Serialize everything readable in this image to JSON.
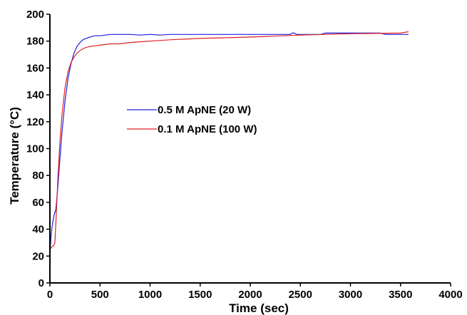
{
  "chart_data": {
    "type": "line",
    "title": "",
    "xlabel": "Time (sec)",
    "ylabel": "Temperature (°C)",
    "xlim": [
      0,
      4000
    ],
    "ylim": [
      0,
      200
    ],
    "xticks": [
      0,
      500,
      1000,
      1500,
      2000,
      2500,
      3000,
      3500,
      4000
    ],
    "yticks": [
      0,
      20,
      40,
      60,
      80,
      100,
      120,
      140,
      160,
      180,
      200
    ],
    "grid": false,
    "legend_position": "center-left",
    "series": [
      {
        "name": "0.5 M ApNE  (20 W)",
        "color": "#1f1fe0",
        "x": [
          0,
          10,
          20,
          40,
          60,
          80,
          100,
          120,
          150,
          180,
          210,
          240,
          270,
          300,
          330,
          360,
          400,
          450,
          500,
          600,
          700,
          800,
          900,
          1000,
          1100,
          1200,
          1500,
          2000,
          2400,
          2420,
          2440,
          2460,
          2500,
          2700,
          2750,
          3000,
          3300,
          3350,
          3400,
          3580
        ],
        "y": [
          22,
          33,
          41,
          50,
          55,
          72,
          92,
          112,
          135,
          152,
          163,
          171,
          176,
          179,
          181,
          182,
          183,
          184,
          184,
          185,
          185,
          185,
          184.5,
          185,
          184.5,
          185,
          185,
          185,
          185,
          186,
          186,
          185,
          185,
          185,
          186,
          186,
          186,
          185,
          185,
          185
        ]
      },
      {
        "name": "0.1 M ApNE (100 W)",
        "color": "#e02020",
        "x": [
          0,
          20,
          40,
          50,
          60,
          80,
          100,
          120,
          150,
          180,
          210,
          240,
          270,
          300,
          350,
          400,
          450,
          500,
          600,
          700,
          800,
          900,
          1000,
          1200,
          1500,
          2000,
          2500,
          3000,
          3500,
          3580
        ],
        "y": [
          25,
          27,
          28,
          30,
          45,
          78,
          105,
          125,
          145,
          157,
          164,
          168,
          171,
          173,
          175,
          176,
          176.5,
          177,
          178,
          178,
          179,
          179.5,
          180,
          181,
          182,
          183,
          184.5,
          185.5,
          186,
          187
        ]
      }
    ]
  }
}
